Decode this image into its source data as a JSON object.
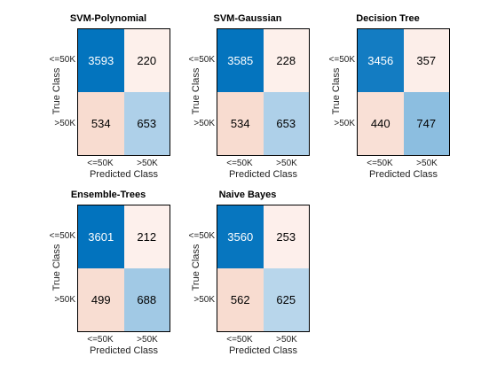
{
  "chart_data": [
    {
      "type": "heatmap",
      "title": "SVM-Polynomial",
      "xlabel": "Predicted Class",
      "ylabel": "True Class",
      "categories": [
        "<=50K",
        ">50K"
      ],
      "values": [
        [
          3593,
          220
        ],
        [
          534,
          653
        ]
      ]
    },
    {
      "type": "heatmap",
      "title": "SVM-Gaussian",
      "xlabel": "Predicted Class",
      "ylabel": "True Class",
      "categories": [
        "<=50K",
        ">50K"
      ],
      "values": [
        [
          3585,
          228
        ],
        [
          534,
          653
        ]
      ]
    },
    {
      "type": "heatmap",
      "title": "Decision Tree",
      "xlabel": "Predicted Class",
      "ylabel": "True Class",
      "categories": [
        "<=50K",
        ">50K"
      ],
      "values": [
        [
          3456,
          357
        ],
        [
          440,
          747
        ]
      ]
    },
    {
      "type": "heatmap",
      "title": "Ensemble-Trees",
      "xlabel": "Predicted Class",
      "ylabel": "True Class",
      "categories": [
        "<=50K",
        ">50K"
      ],
      "values": [
        [
          3601,
          212
        ],
        [
          499,
          688
        ]
      ]
    },
    {
      "type": "heatmap",
      "title": "Naive Bayes",
      "xlabel": "Predicted Class",
      "ylabel": "True Class",
      "categories": [
        "<=50K",
        ">50K"
      ],
      "values": [
        [
          3560,
          253
        ],
        [
          562,
          625
        ]
      ]
    }
  ],
  "colors": {
    "correct_dark": "#0072bd",
    "correct_light": "#c4dcee",
    "error_light": "#fdf0ec",
    "error_dark": "#f8dcd0"
  }
}
